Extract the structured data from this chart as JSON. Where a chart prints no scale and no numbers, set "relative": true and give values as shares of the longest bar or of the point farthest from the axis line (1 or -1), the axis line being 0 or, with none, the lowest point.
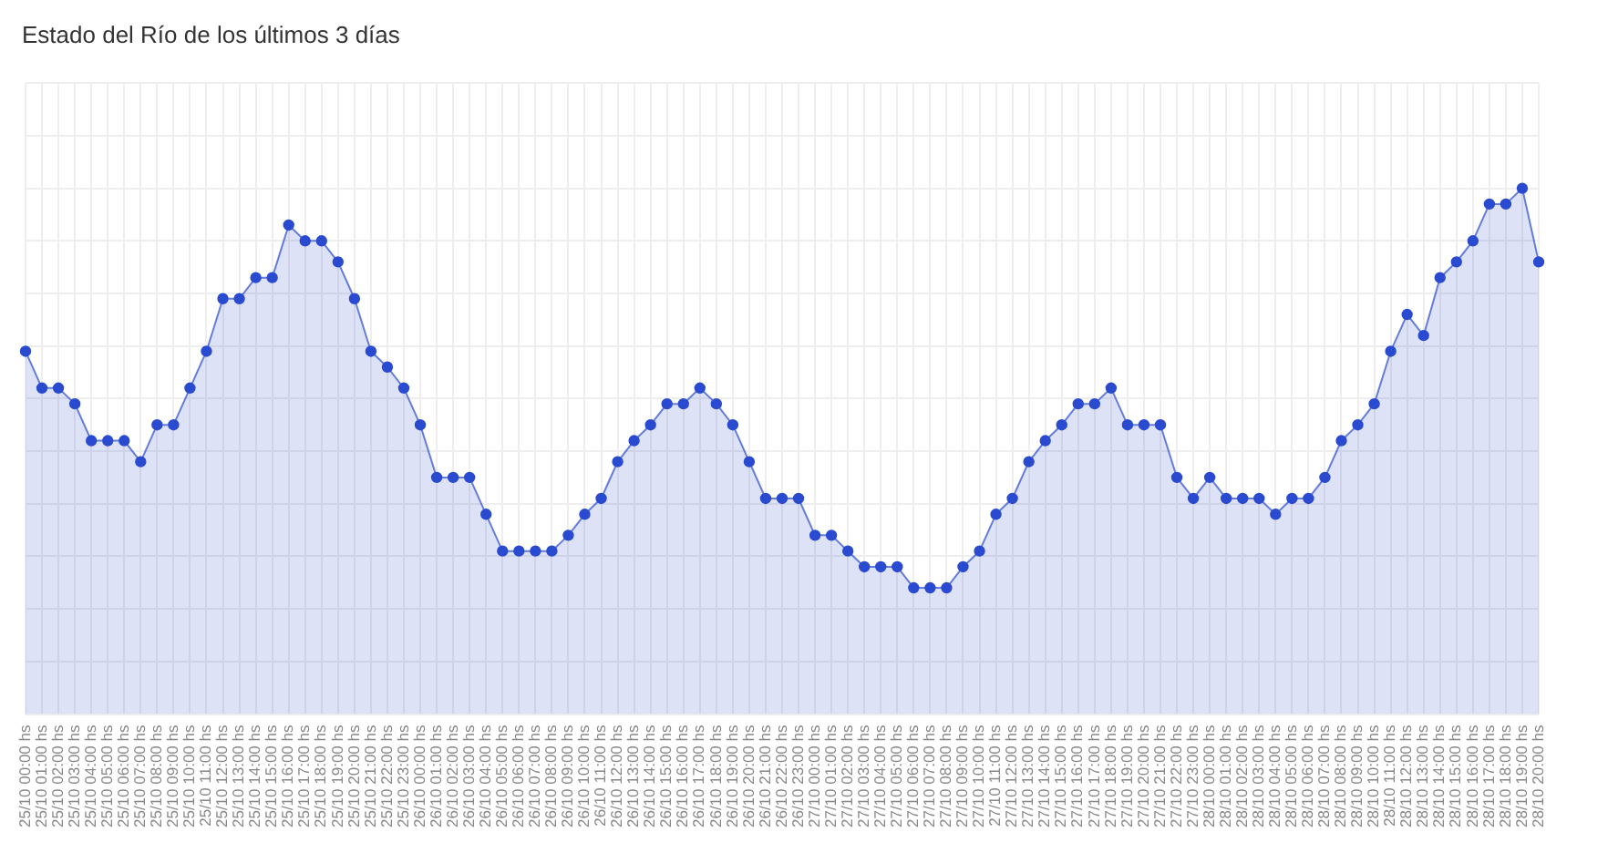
{
  "chart_data": {
    "type": "area",
    "title": "Estado del Río de los últimos 3 días",
    "relative": true,
    "grid": true,
    "legend": false,
    "marker": "circle",
    "line_style": "solid",
    "categories": [
      "25/10 00:00 hs",
      "25/10 01:00 hs",
      "25/10 02:00 hs",
      "25/10 03:00 hs",
      "25/10 04:00 hs",
      "25/10 05:00 hs",
      "25/10 06:00 hs",
      "25/10 07:00 hs",
      "25/10 08:00 hs",
      "25/10 09:00 hs",
      "25/10 10:00 hs",
      "25/10 11:00 hs",
      "25/10 12:00 hs",
      "25/10 13:00 hs",
      "25/10 14:00 hs",
      "25/10 15:00 hs",
      "25/10 16:00 hs",
      "25/10 17:00 hs",
      "25/10 18:00 hs",
      "25/10 19:00 hs",
      "25/10 20:00 hs",
      "25/10 21:00 hs",
      "25/10 22:00 hs",
      "25/10 23:00 hs",
      "26/10 00:00 hs",
      "26/10 01:00 hs",
      "26/10 02:00 hs",
      "26/10 03:00 hs",
      "26/10 04:00 hs",
      "26/10 05:00 hs",
      "26/10 06:00 hs",
      "26/10 07:00 hs",
      "26/10 08:00 hs",
      "26/10 09:00 hs",
      "26/10 10:00 hs",
      "26/10 11:00 hs",
      "26/10 12:00 hs",
      "26/10 13:00 hs",
      "26/10 14:00 hs",
      "26/10 15:00 hs",
      "26/10 16:00 hs",
      "26/10 17:00 hs",
      "26/10 18:00 hs",
      "26/10 19:00 hs",
      "26/10 20:00 hs",
      "26/10 21:00 hs",
      "26/10 22:00 hs",
      "26/10 23:00 hs",
      "27/10 00:00 hs",
      "27/10 01:00 hs",
      "27/10 02:00 hs",
      "27/10 03:00 hs",
      "27/10 04:00 hs",
      "27/10 05:00 hs",
      "27/10 06:00 hs",
      "27/10 07:00 hs",
      "27/10 08:00 hs",
      "27/10 09:00 hs",
      "27/10 10:00 hs",
      "27/10 11:00 hs",
      "27/10 12:00 hs",
      "27/10 13:00 hs",
      "27/10 14:00 hs",
      "27/10 15:00 hs",
      "27/10 16:00 hs",
      "27/10 17:00 hs",
      "27/10 18:00 hs",
      "27/10 19:00 hs",
      "27/10 20:00 hs",
      "27/10 21:00 hs",
      "27/10 22:00 hs",
      "27/10 23:00 hs",
      "28/10 00:00 hs",
      "28/10 01:00 hs",
      "28/10 02:00 hs",
      "28/10 03:00 hs",
      "28/10 04:00 hs",
      "28/10 05:00 hs",
      "28/10 06:00 hs",
      "28/10 07:00 hs",
      "28/10 08:00 hs",
      "28/10 09:00 hs",
      "28/10 10:00 hs",
      "28/10 11:00 hs",
      "28/10 12:00 hs",
      "28/10 13:00 hs",
      "28/10 14:00 hs",
      "28/10 15:00 hs",
      "28/10 16:00 hs",
      "28/10 17:00 hs",
      "28/10 18:00 hs",
      "28/10 19:00 hs",
      "28/10 20:00 hs"
    ],
    "series": [
      {
        "color": "#2a4bd0",
        "values": [
          0.69,
          0.62,
          0.62,
          0.59,
          0.52,
          0.52,
          0.52,
          0.48,
          0.55,
          0.55,
          0.62,
          0.69,
          0.79,
          0.79,
          0.83,
          0.83,
          0.93,
          0.9,
          0.9,
          0.86,
          0.79,
          0.69,
          0.66,
          0.62,
          0.55,
          0.45,
          0.45,
          0.45,
          0.38,
          0.31,
          0.31,
          0.31,
          0.31,
          0.34,
          0.38,
          0.41,
          0.48,
          0.52,
          0.55,
          0.59,
          0.59,
          0.62,
          0.59,
          0.55,
          0.48,
          0.41,
          0.41,
          0.41,
          0.34,
          0.34,
          0.31,
          0.28,
          0.28,
          0.28,
          0.24,
          0.24,
          0.24,
          0.28,
          0.31,
          0.38,
          0.41,
          0.48,
          0.52,
          0.55,
          0.59,
          0.59,
          0.62,
          0.55,
          0.55,
          0.55,
          0.45,
          0.41,
          0.45,
          0.41,
          0.41,
          0.41,
          0.38,
          0.41,
          0.41,
          0.45,
          0.52,
          0.55,
          0.59,
          0.69,
          0.76,
          0.72,
          0.83,
          0.86,
          0.9,
          0.97,
          0.97,
          1,
          0.86
        ]
      }
    ]
  }
}
